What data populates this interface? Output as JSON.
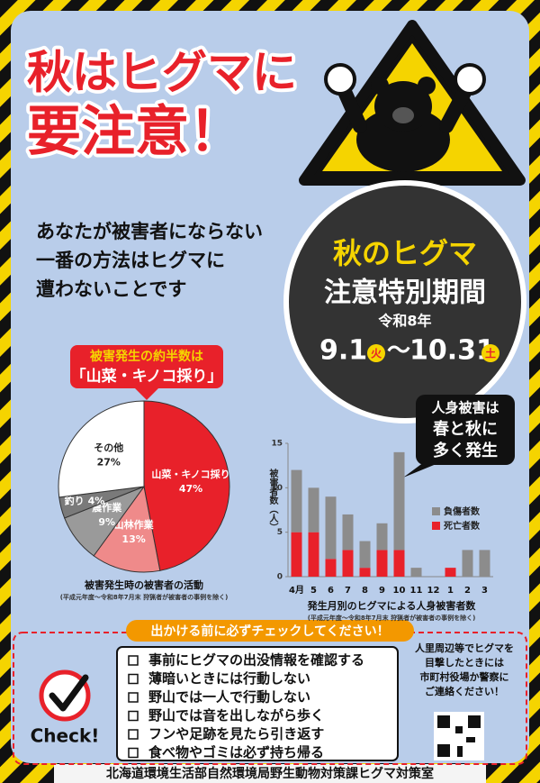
{
  "header": {
    "title_lines": [
      "秋はヒグマに",
      "要注意！"
    ]
  },
  "message": {
    "lines": [
      "あなたが被害者にならない",
      "一番の方法はヒグマに",
      "遭わないことです"
    ]
  },
  "period": {
    "title": "秋のヒグマ",
    "subtitle": "注意特別期間",
    "year": "令和8年",
    "start": "9.1",
    "start_day": "火",
    "separator": "～",
    "end": "10.31",
    "end_day": "土"
  },
  "pie_callout": {
    "lines": [
      "被害発生の約半数は",
      "「山菜・キノコ採り」"
    ]
  },
  "bubble": {
    "lines": [
      "人身被害は",
      "春と秋に",
      "多く発生"
    ]
  },
  "chart_data": [
    {
      "type": "pie",
      "title": "被害発生時の被害者の活動",
      "note": "(平成元年度～令和8年7月末 狩猟者が被害者の事例を除く)",
      "categories": [
        "山菜・キノコ採り",
        "山林作業",
        "農作業",
        "釣り",
        "その他"
      ],
      "values": [
        47,
        13,
        9,
        4,
        27
      ],
      "value_labels": [
        "47%",
        "13%",
        "9%",
        "4%",
        "27%"
      ],
      "colors": [
        "#e8212a",
        "#ef8a8a",
        "#9a9a9a",
        "#7a7a7a",
        "#ffffff"
      ]
    },
    {
      "type": "bar",
      "stacked": true,
      "title": "発生月別のヒグマによる人身被害者数",
      "note": "(平成元年度～令和8年7月末 狩猟者が被害者の事例を除く)",
      "y_label": "被害者数（人）",
      "categories": [
        "4月",
        "5",
        "6",
        "7",
        "8",
        "9",
        "10",
        "11",
        "12",
        "1",
        "2",
        "3"
      ],
      "series": [
        {
          "name": "負傷者数",
          "color": "#8c8c8c",
          "values": [
            7,
            5,
            7,
            4,
            3,
            3,
            11,
            1,
            0,
            0,
            3,
            3
          ]
        },
        {
          "name": "死亡者数",
          "color": "#e8212a",
          "values": [
            5,
            5,
            2,
            3,
            1,
            3,
            3,
            0,
            0,
            1,
            0,
            0
          ]
        }
      ],
      "ylim": [
        0,
        15
      ],
      "yticks": [
        0,
        5,
        10,
        15
      ],
      "grid": false
    }
  ],
  "checklist": {
    "title": "出かける前に必ずチェックしてください！",
    "badge": "Check!",
    "items": [
      "事前にヒグマの出没情報を確認する",
      "薄暗いときには行動しない",
      "野山では一人で行動しない",
      "野山では音を出しながら歩く",
      "フンや足跡を見たら引き返す",
      "食べ物やゴミは必ず持ち帰る"
    ]
  },
  "contact": {
    "lines": [
      "人里周辺等でヒグマを",
      "目撃したときには",
      "市町村役場か警察に",
      "ご連絡ください！"
    ]
  },
  "footer": "北海道環境生活部自然環境局野生動物対策課ヒグマ対策室"
}
